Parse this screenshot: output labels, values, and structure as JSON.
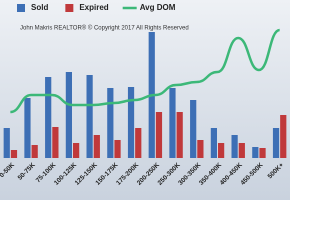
{
  "chart_data": {
    "type": "bar",
    "annotation": "John Makris REALTOR® © Copyright 2017 All Rights Reserved",
    "categories": [
      "0-50K",
      "50-75K",
      "75-100K",
      "100-125K",
      "125-150K",
      "150-175K",
      "175-200K",
      "200-250K",
      "250-300K",
      "300-350K",
      "350-400K",
      "400-450K",
      "450-500K",
      "500K+"
    ],
    "series": [
      {
        "name": "Sold",
        "color": "#3d6fb5",
        "values": [
          30,
          60,
          81,
          86,
          83,
          70,
          71,
          126,
          70,
          58,
          30,
          23,
          11,
          30
        ]
      },
      {
        "name": "Expired",
        "color": "#c0393b",
        "values": [
          8,
          13,
          31,
          15,
          23,
          18,
          30,
          46,
          46,
          18,
          15,
          15,
          10,
          43
        ]
      },
      {
        "name": "Avg DOM",
        "color": "#3cb878",
        "type": "line",
        "axis": "y2",
        "values": [
          46,
          63,
          63,
          53,
          53,
          55,
          58,
          63,
          73,
          76,
          86,
          120,
          88,
          128
        ]
      }
    ],
    "ylim": [
      0,
      140
    ],
    "y2lim": [
      0,
      140
    ]
  }
}
